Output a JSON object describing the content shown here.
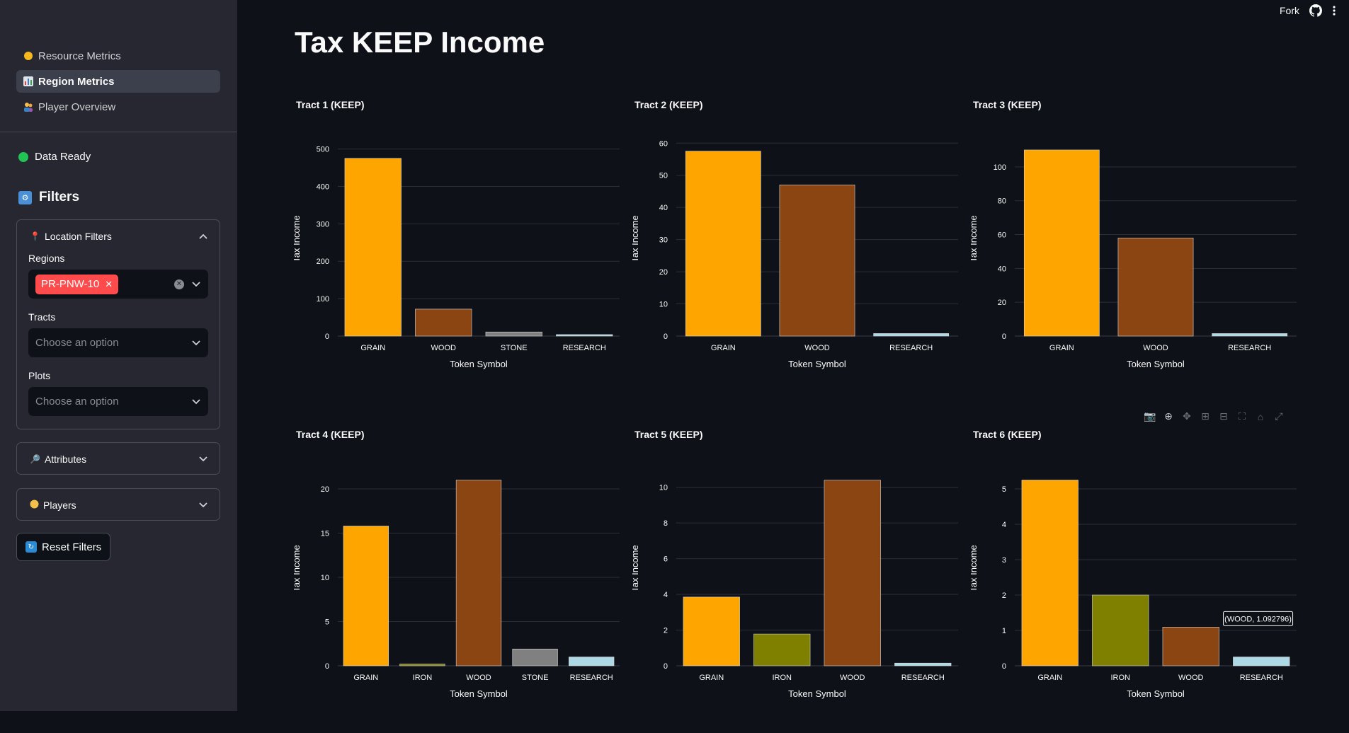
{
  "sidebar": {
    "nav": [
      {
        "label": "Resource Metrics",
        "icon": "coin-icon",
        "active": false
      },
      {
        "label": "Region Metrics",
        "icon": "bar-chart-icon",
        "active": true
      },
      {
        "label": "Player Overview",
        "icon": "people-icon",
        "active": false
      }
    ],
    "status": "Data Ready",
    "filters_title": "Filters",
    "location_filters": {
      "title": "Location Filters",
      "regions_label": "Regions",
      "regions_selected": "PR-PNW-10",
      "tracts_label": "Tracts",
      "tracts_placeholder": "Choose an option",
      "plots_label": "Plots",
      "plots_placeholder": "Choose an option"
    },
    "attributes_title": "Attributes",
    "players_title": "Players",
    "reset_label": "Reset Filters"
  },
  "topbar": {
    "fork": "Fork"
  },
  "page_title": "Tax KEEP Income",
  "tooltip": "(WOOD, 1.092796)",
  "colors": {
    "GRAIN": "#ffa500",
    "WOOD": "#8b4513",
    "STONE": "#808080",
    "RESEARCH": "#add8e6",
    "IRON": "#808000"
  },
  "chart_data": [
    {
      "type": "bar",
      "title": "Tract 1 (KEEP)",
      "xlabel": "Token Symbol",
      "ylabel": "Tax Income",
      "categories": [
        "GRAIN",
        "WOOD",
        "STONE",
        "RESEARCH"
      ],
      "values": [
        475,
        72,
        11,
        4
      ],
      "ylim": [
        0,
        520
      ],
      "yticks": [
        0,
        100,
        200,
        300,
        400,
        500
      ]
    },
    {
      "type": "bar",
      "title": "Tract 2 (KEEP)",
      "xlabel": "Token Symbol",
      "ylabel": "Tax Income",
      "categories": [
        "GRAIN",
        "WOOD",
        "RESEARCH"
      ],
      "values": [
        57.5,
        47,
        0.8
      ],
      "ylim": [
        0,
        60.5
      ],
      "yticks": [
        0,
        10,
        20,
        30,
        40,
        50,
        60
      ]
    },
    {
      "type": "bar",
      "title": "Tract 3 (KEEP)",
      "xlabel": "Token Symbol",
      "ylabel": "Tax Income",
      "categories": [
        "GRAIN",
        "WOOD",
        "RESEARCH"
      ],
      "values": [
        110,
        58,
        1.5
      ],
      "ylim": [
        0,
        115
      ],
      "yticks": [
        0,
        20,
        40,
        60,
        80,
        100
      ]
    },
    {
      "type": "bar",
      "title": "Tract 4 (KEEP)",
      "xlabel": "Token Symbol",
      "ylabel": "Tax Income",
      "categories": [
        "GRAIN",
        "IRON",
        "WOOD",
        "STONE",
        "RESEARCH"
      ],
      "values": [
        15.8,
        0.2,
        21,
        1.9,
        1.0
      ],
      "ylim": [
        0,
        22
      ],
      "yticks": [
        0,
        5,
        10,
        15,
        20
      ]
    },
    {
      "type": "bar",
      "title": "Tract 5 (KEEP)",
      "xlabel": "Token Symbol",
      "ylabel": "Tax Income",
      "categories": [
        "GRAIN",
        "IRON",
        "WOOD",
        "RESEARCH"
      ],
      "values": [
        3.85,
        1.78,
        10.4,
        0.15
      ],
      "ylim": [
        0,
        10.9
      ],
      "yticks": [
        0,
        2,
        4,
        6,
        8,
        10
      ]
    },
    {
      "type": "bar",
      "title": "Tract 6 (KEEP)",
      "xlabel": "Token Symbol",
      "ylabel": "Tax Income",
      "categories": [
        "GRAIN",
        "IRON",
        "WOOD",
        "RESEARCH"
      ],
      "values": [
        5.25,
        2.0,
        1.092796,
        0.25
      ],
      "ylim": [
        0,
        5.5
      ],
      "yticks": [
        0,
        1,
        2,
        3,
        4,
        5
      ]
    }
  ]
}
